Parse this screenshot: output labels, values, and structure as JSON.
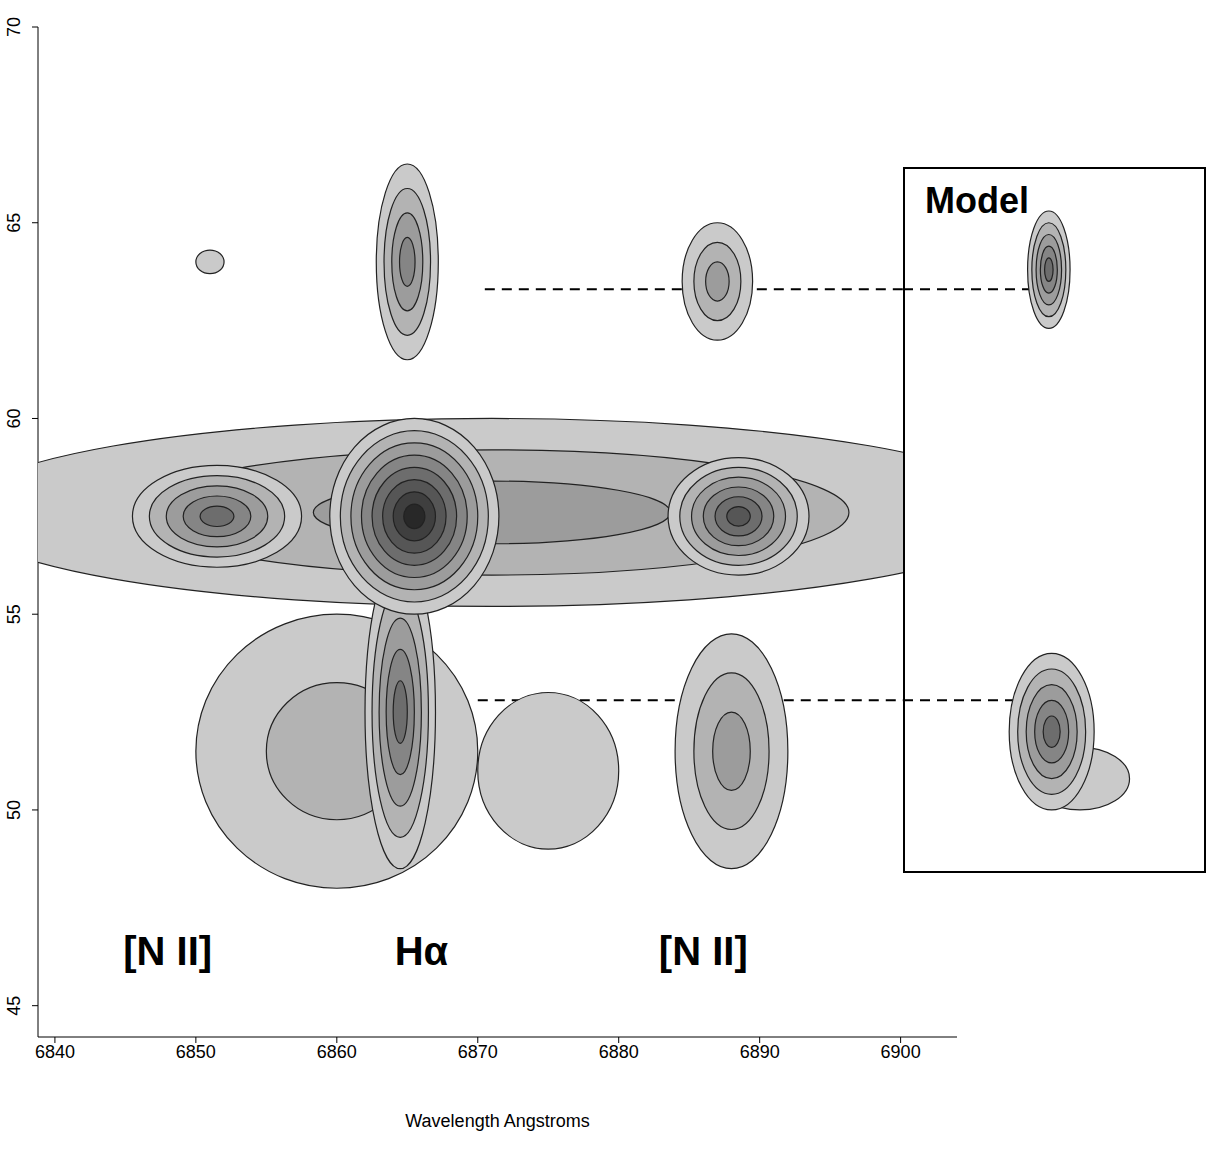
{
  "chart_data": {
    "type": "contour",
    "x_label": "Wavelength Angstroms",
    "xlim": [
      6838.8,
      6904
    ],
    "xticks": [
      6840,
      6850,
      6860,
      6870,
      6880,
      6890,
      6900
    ],
    "ylim": [
      44.2,
      70
    ],
    "yticks": [
      45,
      50,
      55,
      60,
      65,
      70
    ],
    "color": "#000000",
    "features": [
      {
        "x": 6871,
        "y": 57.6,
        "x_halfwidth": 38,
        "y_halfwidth": 2.4,
        "levels": 3
      },
      {
        "x": 6860,
        "y": 51.5,
        "x_halfwidth": 10,
        "y_halfwidth": 3.5,
        "levels": 2
      },
      {
        "x": 6875,
        "y": 51,
        "x_halfwidth": 5,
        "y_halfwidth": 2,
        "levels": 1
      },
      {
        "x": 6888,
        "y": 51.5,
        "x_halfwidth": 4,
        "y_halfwidth": 3,
        "levels": 3
      },
      {
        "x": 6864.5,
        "y": 52.5,
        "x_halfwidth": 2.5,
        "y_halfwidth": 4,
        "levels": 5
      },
      {
        "x": 6865,
        "y": 64,
        "x_halfwidth": 2.2,
        "y_halfwidth": 2.5,
        "levels": 4
      },
      {
        "x": 6887,
        "y": 63.5,
        "x_halfwidth": 2.5,
        "y_halfwidth": 1.5,
        "levels": 3
      },
      {
        "x": 6851,
        "y": 64,
        "x_halfwidth": 1,
        "y_halfwidth": 0.3,
        "levels": 1
      },
      {
        "x": 6851.5,
        "y": 57.5,
        "x_halfwidth": 6,
        "y_halfwidth": 1.3,
        "levels": 5
      },
      {
        "x": 6888.5,
        "y": 57.5,
        "x_halfwidth": 5,
        "y_halfwidth": 1.5,
        "levels": 6
      },
      {
        "x": 6865.5,
        "y": 57.5,
        "x_halfwidth": 6,
        "y_halfwidth": 2.5,
        "levels": 8
      }
    ],
    "annotations": [
      {
        "text": "[N II]",
        "x": 6848,
        "y": 46.3
      },
      {
        "text": "Hα",
        "x": 6866,
        "y": 46.3
      },
      {
        "text": "[N II]",
        "x": 6886,
        "y": 46.3
      }
    ],
    "dashed_lines": [
      {
        "y": 63.3,
        "x_start": 6870.5,
        "x_end": 6910.3
      },
      {
        "y": 52.8,
        "x_start": 6870,
        "x_end": 6910.5
      }
    ],
    "inset": {
      "title": "Model",
      "xlim": [
        6900,
        6921.4
      ],
      "ylim": [
        44.2,
        70
      ],
      "tick_labels": false,
      "features": [
        {
          "x": 6912.5,
          "y": 50.8,
          "x_halfwidth": 3.5,
          "y_halfwidth": 0.8,
          "levels": 1
        },
        {
          "x": 6910.5,
          "y": 52,
          "x_halfwidth": 3,
          "y_halfwidth": 2,
          "levels": 5
        },
        {
          "x": 6910.3,
          "y": 63.8,
          "x_halfwidth": 1.5,
          "y_halfwidth": 1.5,
          "levels": 5
        }
      ]
    }
  }
}
